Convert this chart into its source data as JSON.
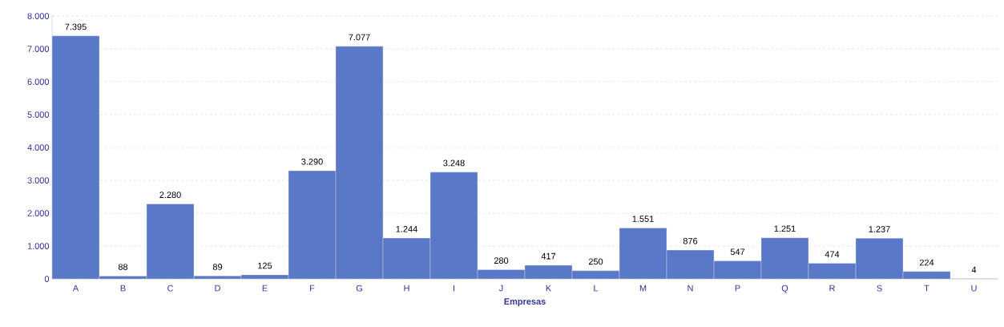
{
  "chart_data": {
    "type": "bar",
    "xlabel": "Empresas",
    "categories": [
      "A",
      "B",
      "C",
      "D",
      "E",
      "F",
      "G",
      "H",
      "I",
      "J",
      "K",
      "L",
      "M",
      "N",
      "P",
      "Q",
      "R",
      "S",
      "T",
      "U"
    ],
    "values": [
      7395,
      88,
      2280,
      89,
      125,
      3290,
      7077,
      1244,
      3248,
      280,
      417,
      250,
      1551,
      876,
      547,
      1251,
      474,
      1237,
      224,
      4
    ],
    "value_labels": [
      "7.395",
      "88",
      "2.280",
      "89",
      "125",
      "3.290",
      "7.077",
      "1.244",
      "3.248",
      "280",
      "417",
      "250",
      "1.551",
      "876",
      "547",
      "1.251",
      "474",
      "1.237",
      "224",
      "4"
    ],
    "color": "#5a78c8",
    "ylim": [
      0,
      8000
    ],
    "yticks": [
      0,
      {
        "value": 1000,
        "label": "1.000"
      },
      {
        "value": 2000,
        "label": "2.000"
      },
      {
        "value": 3000,
        "label": "3.000"
      },
      {
        "value": 4000,
        "label": "4.000"
      },
      {
        "value": 5000,
        "label": "5.000"
      },
      {
        "value": 6000,
        "label": "6.000"
      },
      {
        "value": 7000,
        "label": "7.000"
      },
      {
        "value": 8000,
        "label": "8.000"
      }
    ],
    "grid": "y"
  }
}
